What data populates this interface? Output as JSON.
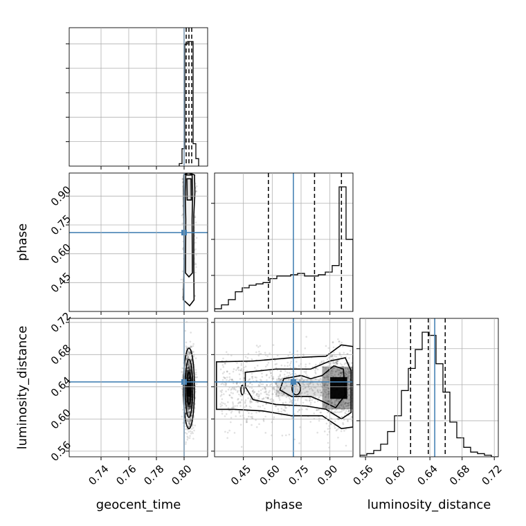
{
  "chart_data": {
    "type": "corner",
    "parameters": [
      "geocent_time",
      "phase",
      "luminosity_distance"
    ],
    "truths": {
      "geocent_time": 0.8,
      "phase": 0.71,
      "luminosity_distance": 0.646
    },
    "quantiles": {
      "geocent_time": [
        0.8015,
        0.8035,
        0.8055
      ],
      "phase": [
        0.58,
        0.82,
        0.96
      ],
      "luminosity_distance": [
        0.616,
        0.638,
        0.659
      ]
    },
    "ranges": {
      "geocent_time": [
        0.717,
        0.817
      ],
      "phase": [
        0.3,
        1.02
      ],
      "luminosity_distance": [
        0.553,
        0.725
      ]
    },
    "ticks": {
      "geocent_time": [
        "0.74",
        "0.76",
        "0.78",
        "0.80"
      ],
      "phase": [
        "0.45",
        "0.60",
        "0.75",
        "0.90"
      ],
      "phase_x": [
        "0.45",
        "0.60",
        "0.75",
        "0.90"
      ],
      "luminosity_distance": [
        "0.56",
        "0.60",
        "0.64",
        "0.68",
        "0.72"
      ]
    },
    "histograms": {
      "geocent_time": {
        "edges": [
          0.7965,
          0.7985,
          0.8005,
          0.8025,
          0.8045,
          0.8065,
          0.8085,
          0.8105
        ],
        "counts": [
          2,
          14,
          98,
          100,
          100,
          18,
          6
        ]
      },
      "phase": {
        "edges": [
          0.3,
          0.336,
          0.372,
          0.408,
          0.444,
          0.48,
          0.516,
          0.552,
          0.588,
          0.624,
          0.66,
          0.696,
          0.732,
          0.768,
          0.804,
          0.84,
          0.876,
          0.912,
          0.948,
          0.984,
          1.02
        ],
        "counts": [
          2,
          5,
          9,
          15,
          18,
          20,
          21,
          22,
          25,
          27,
          27,
          28,
          29,
          27,
          27,
          28,
          30,
          35,
          95,
          55
        ]
      },
      "luminosity_distance": {
        "edges": [
          0.553,
          0.5616,
          0.5702,
          0.5788,
          0.5874,
          0.596,
          0.6046,
          0.6132,
          0.6218,
          0.6304,
          0.639,
          0.6476,
          0.6562,
          0.6648,
          0.6734,
          0.682,
          0.6906,
          0.6992,
          0.7078,
          0.7164,
          0.725
        ],
        "counts": [
          1,
          2,
          4,
          8,
          16,
          26,
          42,
          56,
          68,
          79,
          77,
          59,
          41,
          22,
          12,
          6,
          3,
          2,
          1,
          0
        ]
      }
    }
  }
}
